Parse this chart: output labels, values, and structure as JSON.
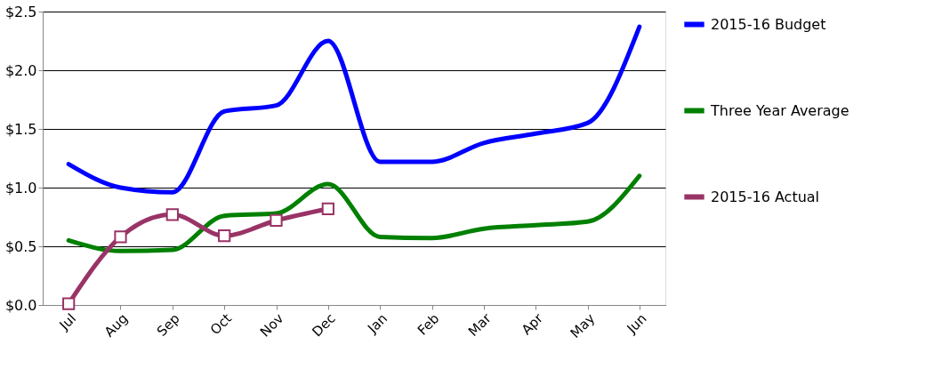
{
  "chart_data": {
    "type": "line",
    "categories": [
      "Jul",
      "Aug",
      "Sep",
      "Oct",
      "Nov",
      "Dec",
      "Jan",
      "Feb",
      "Mar",
      "Apr",
      "May",
      "Jun"
    ],
    "series": [
      {
        "name": "2015-16 Budget",
        "color": "#0000ff",
        "marker": "none",
        "values": [
          1.2,
          1.0,
          0.96,
          1.65,
          1.7,
          2.25,
          1.22,
          1.22,
          1.38,
          1.46,
          1.55,
          2.37
        ]
      },
      {
        "name": "Three Year Average",
        "color": "#008000",
        "marker": "none",
        "values": [
          0.55,
          0.46,
          0.47,
          0.76,
          0.78,
          1.03,
          0.58,
          0.57,
          0.65,
          0.68,
          0.71,
          1.1
        ]
      },
      {
        "name": "2015-16 Actual",
        "color": "#993366",
        "marker": "square",
        "values": [
          0.01,
          0.58,
          0.77,
          0.59,
          0.72,
          0.82,
          null,
          null,
          null,
          null,
          null,
          null
        ]
      }
    ],
    "ylim": [
      0,
      2.5
    ],
    "yticks": [
      {
        "value": 0,
        "label": "$0.0"
      },
      {
        "value": 0.5,
        "label": "$0.5"
      },
      {
        "value": 1,
        "label": "$1.0"
      },
      {
        "value": 1.5,
        "label": "$1.5"
      },
      {
        "value": 2,
        "label": "$2.0"
      },
      {
        "value": 2.5,
        "label": "$2.5"
      }
    ],
    "grid": "y",
    "legend": "right",
    "line_style": "solid"
  }
}
